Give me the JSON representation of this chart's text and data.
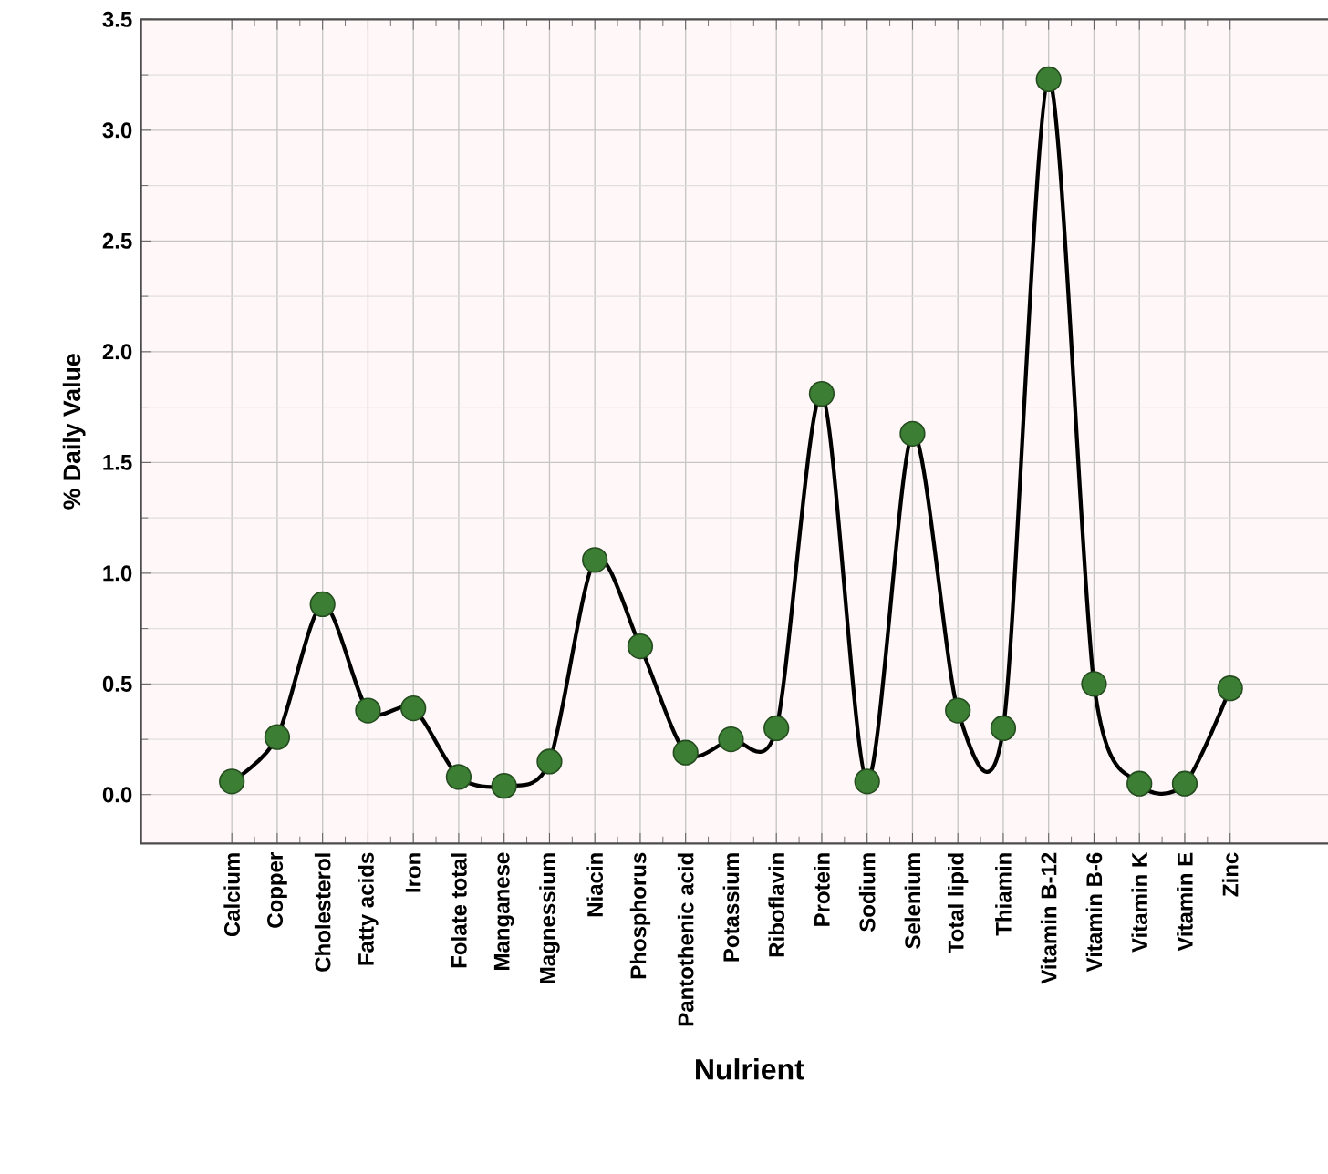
{
  "chart_data": {
    "type": "line",
    "xlabel": "Nulrient",
    "ylabel": "% Daily Value",
    "categories": [
      "Calcium",
      "Copper",
      "Cholesterol",
      "Fatty acids",
      "Iron",
      "Folate total",
      "Manganese",
      "Magnessium",
      "Niacin",
      "Phosphorus",
      "Pantothenic acid",
      "Potassium",
      "Riboflavin",
      "Protein",
      "Sodium",
      "Selenium",
      "Total lipid",
      "Thiamin",
      "Vitamin B-12",
      "Vitamin B-6",
      "Vitamin K",
      "Vitamin E",
      "Zinc"
    ],
    "series": [
      {
        "color": "#3c7f34",
        "values": [
          0.06,
          0.26,
          0.86,
          0.38,
          0.39,
          0.08,
          0.04,
          0.15,
          1.06,
          0.67,
          0.19,
          0.25,
          0.3,
          1.81,
          0.06,
          1.63,
          0.38,
          0.3,
          3.23,
          0.5,
          0.05,
          0.05,
          0.48
        ]
      }
    ],
    "ylim": [
      -0.22,
      3.5
    ],
    "yticks": [
      {
        "value": 0,
        "label": "0.0"
      },
      0.5,
      {
        "value": 1,
        "label": "1.0"
      },
      1.5,
      {
        "value": 2,
        "label": "2.0"
      },
      2.5,
      {
        "value": 3,
        "label": "3.0"
      },
      3.5
    ],
    "grid": true,
    "marker": "circle",
    "line_style": "solid"
  }
}
